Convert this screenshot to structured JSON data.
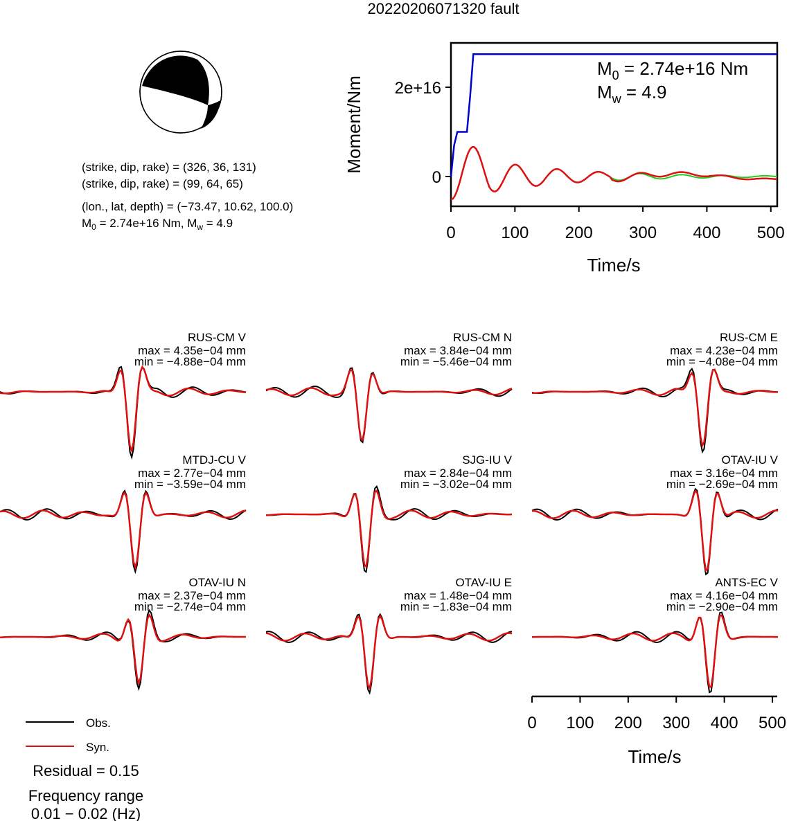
{
  "title": "20220206071320 fault",
  "focal": {
    "line1": "(strike, dip, rake) = (326, 36, 131)",
    "line2": "(strike, dip, rake) = (99, 64, 65)",
    "line3": "(lon., lat, depth) = (−73.47, 10.62, 100.0)",
    "line4_m0_prefix": "M",
    "line4_m0_sub": "0",
    "line4_m0_value": " = 2.74e+16 Nm, M",
    "line4_mw_sub": "w",
    "line4_mw_value": " = 4.9"
  },
  "stf": {
    "ylabel": "Moment/Nm",
    "xlabel": "Time/s",
    "xticks": [
      0,
      100,
      200,
      300,
      400,
      500
    ],
    "ytick_labels": [
      "0",
      "2e+16"
    ],
    "m0_prefix": "M",
    "m0_sub": "0",
    "m0_value": " = 2.74e+16 Nm",
    "mw_prefix": "M",
    "mw_sub": "w",
    "mw_value": " = 4.9",
    "colors": {
      "cumulative": "#0000cc",
      "rate_obs": "#22cc22",
      "rate_syn": "#dd1111"
    }
  },
  "waveforms_axis": {
    "xlabel": "Time/s",
    "xticks": [
      0,
      100,
      200,
      300,
      400,
      500
    ]
  },
  "legend": {
    "obs_label": "Obs.",
    "syn_label": "Syn.",
    "residual": "Residual = 0.15",
    "freq_label": "Frequency range",
    "freq_value": "0.01 − 0.02 (Hz)",
    "obs_color": "#000000",
    "syn_color": "#dd1111"
  },
  "chart_data": [
    {
      "type": "line",
      "title": "",
      "xlabel": "Time/s",
      "ylabel": "Moment/Nm",
      "xlim": [
        0,
        510
      ],
      "series": [
        {
          "name": "",
          "x": [
            0,
            5,
            10,
            15,
            20,
            25,
            30,
            35,
            40,
            510
          ],
          "values": [
            0,
            7000000000000000.0,
            1e+16,
            1e+16,
            1e+16,
            1e+16,
            1.8e+16,
            2.74e+16,
            2.74e+16,
            2.74e+16
          ]
        }
      ]
    },
    {
      "type": "line",
      "xlim": [
        0,
        510
      ],
      "stations": [
        {
          "name": "RUS-CM V",
          "max": "max = 4.35e−04 mm",
          "min": "min = −4.88e−04 mm"
        },
        {
          "name": "RUS-CM N",
          "max": "max = 3.84e−04 mm",
          "min": "min = −5.46e−04 mm"
        },
        {
          "name": "RUS-CM E",
          "max": "max = 4.23e−04 mm",
          "min": "min = −4.08e−04 mm"
        },
        {
          "name": "MTDJ-CU V",
          "max": "max = 2.77e−04 mm",
          "min": "min = −3.59e−04 mm"
        },
        {
          "name": "SJG-IU V",
          "max": "max = 2.84e−04 mm",
          "min": "min = −3.02e−04 mm"
        },
        {
          "name": "OTAV-IU V",
          "max": "max = 3.16e−04 mm",
          "min": "min = −2.69e−04 mm"
        },
        {
          "name": "OTAV-IU N",
          "max": "max = 2.37e−04 mm",
          "min": "min = −2.74e−04 mm"
        },
        {
          "name": "OTAV-IU E",
          "max": "max = 1.48e−04 mm",
          "min": "min = −1.83e−04 mm"
        },
        {
          "name": "ANTS-EC V",
          "max": "max = 4.16e−04 mm",
          "min": "min = −2.90e−04 mm"
        }
      ]
    }
  ]
}
